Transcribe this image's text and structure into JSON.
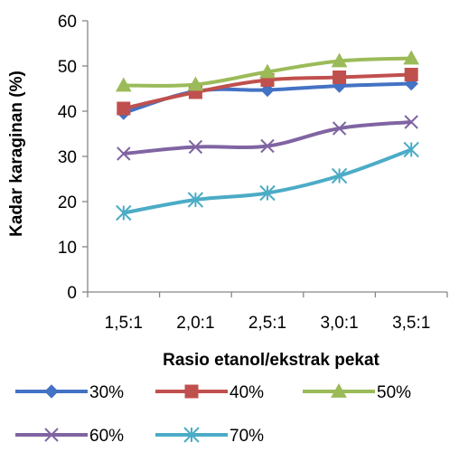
{
  "chart_data": {
    "type": "line",
    "title": "",
    "xlabel": "Rasio etanol/ekstrak pekat",
    "ylabel": "Kadar karaginan (%)",
    "ylim": [
      0,
      60
    ],
    "yticks": [
      "0",
      "10",
      "20",
      "30",
      "40",
      "50",
      "60"
    ],
    "categories": [
      "1,5:1",
      "2,0:1",
      "2,5:1",
      "3,0:1",
      "3,5:1"
    ],
    "grid": false,
    "legend_position": "bottom",
    "series": [
      {
        "name": "30%",
        "values": [
          39.6,
          44.4,
          44.7,
          45.6,
          46.1
        ],
        "color": "#4472C4",
        "marker": "diamond"
      },
      {
        "name": "40%",
        "values": [
          40.6,
          44.2,
          46.9,
          47.5,
          48.1
        ],
        "color": "#C0504D",
        "marker": "square"
      },
      {
        "name": "50%",
        "values": [
          45.7,
          45.9,
          48.7,
          51.1,
          51.7
        ],
        "color": "#9BBB59",
        "marker": "triangle"
      },
      {
        "name": "60%",
        "values": [
          30.6,
          32.1,
          32.3,
          36.2,
          37.6
        ],
        "color": "#8064A2",
        "marker": "x"
      },
      {
        "name": "70%",
        "values": [
          17.5,
          20.4,
          21.9,
          25.7,
          31.5
        ],
        "color": "#4BACC6",
        "marker": "star"
      }
    ]
  }
}
